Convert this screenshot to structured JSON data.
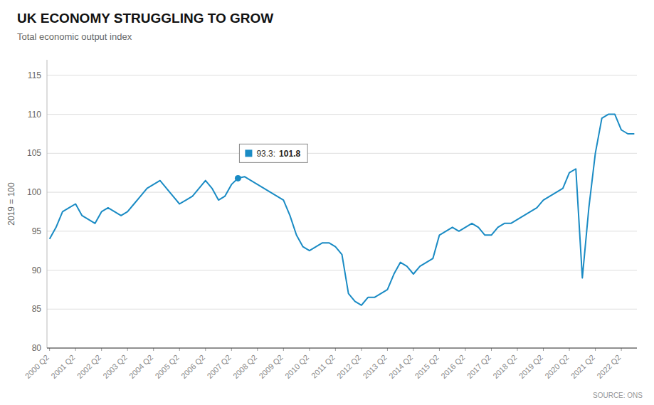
{
  "chart_data": {
    "type": "line",
    "title": "UK ECONOMY STRUGGLING TO GROW",
    "subtitle": "Total economic output index",
    "y_label": "2019 = 100",
    "source": "SOURCE: ONS",
    "color": "#1a8bc4",
    "grid": "y",
    "x": [
      0,
      0.25,
      0.5,
      0.75,
      1,
      1.25,
      1.5,
      1.75,
      2,
      2.25,
      2.5,
      2.75,
      3,
      3.25,
      3.5,
      3.75,
      4,
      4.25,
      4.5,
      4.75,
      5,
      5.25,
      5.5,
      5.75,
      6,
      6.25,
      6.5,
      6.75,
      7,
      7.25,
      7.5,
      7.75,
      8,
      8.25,
      8.5,
      8.75,
      9,
      9.25,
      9.5,
      9.75,
      10,
      10.25,
      10.5,
      10.75,
      11,
      11.25,
      11.5,
      11.75,
      12,
      12.25,
      12.5,
      12.75,
      13,
      13.25,
      13.5,
      13.75,
      14,
      14.25,
      14.5,
      14.75,
      15,
      15.25,
      15.5,
      15.75,
      16,
      16.25,
      16.5,
      16.75,
      17,
      17.25,
      17.5,
      17.75,
      18,
      18.25,
      18.5,
      18.75,
      19,
      19.25,
      19.5,
      19.75,
      20,
      20.25,
      20.5,
      20.75,
      21,
      21.25,
      21.5,
      21.75,
      22,
      22.25,
      22.5
    ],
    "values": [
      94.0,
      95.5,
      97.5,
      98.0,
      98.5,
      97.0,
      96.5,
      96.0,
      97.5,
      98.0,
      97.5,
      97.0,
      97.5,
      98.5,
      99.5,
      100.5,
      101.0,
      101.5,
      100.5,
      99.5,
      98.5,
      99.0,
      99.5,
      100.5,
      101.5,
      100.5,
      99.0,
      99.5,
      101.0,
      101.8,
      102.0,
      101.5,
      101.0,
      100.5,
      100.0,
      99.5,
      99.0,
      97.0,
      94.5,
      93.0,
      92.5,
      93.0,
      93.5,
      93.5,
      93.0,
      92.0,
      87.0,
      86.0,
      85.5,
      86.5,
      86.5,
      87.0,
      87.5,
      89.5,
      91.0,
      90.5,
      89.5,
      90.5,
      91.0,
      91.5,
      94.5,
      95.0,
      95.5,
      95.0,
      95.5,
      96.0,
      95.5,
      94.5,
      94.5,
      95.5,
      96.0,
      96.0,
      96.5,
      97.0,
      97.5,
      98.0,
      99.0,
      99.5,
      100.0,
      100.5,
      102.5,
      103.0,
      89.0,
      98.0,
      105.0,
      109.5,
      110.0,
      110.0,
      108.0,
      107.5,
      107.5
    ],
    "xlim": [
      -0.1,
      22.6
    ],
    "xticks": [
      {
        "value": 0,
        "label": "2000 Q2"
      },
      {
        "value": 1,
        "label": "2001 Q2"
      },
      {
        "value": 2,
        "label": "2002 Q2"
      },
      {
        "value": 3,
        "label": "2003 Q2"
      },
      {
        "value": 4,
        "label": "2004 Q2"
      },
      {
        "value": 5,
        "label": "2005 Q2"
      },
      {
        "value": 6,
        "label": "2006 Q2"
      },
      {
        "value": 7,
        "label": "2007 Q2"
      },
      {
        "value": 8,
        "label": "2008 Q2"
      },
      {
        "value": 9,
        "label": "2009 Q2"
      },
      {
        "value": 10,
        "label": "2010 Q2"
      },
      {
        "value": 11,
        "label": "2011 Q2"
      },
      {
        "value": 12,
        "label": "2012 Q2"
      },
      {
        "value": 13,
        "label": "2013 Q2"
      },
      {
        "value": 14,
        "label": "2014 Q2"
      },
      {
        "value": 15,
        "label": "2015 Q2"
      },
      {
        "value": 16,
        "label": "2016 Q2"
      },
      {
        "value": 17,
        "label": "2017 Q2"
      },
      {
        "value": 18,
        "label": "2018 Q2"
      },
      {
        "value": 19,
        "label": "2019 Q2"
      },
      {
        "value": 20,
        "label": "2020 Q2"
      },
      {
        "value": 21,
        "label": "2021 Q2"
      },
      {
        "value": 22,
        "label": "2022 Q2"
      }
    ],
    "ylim": [
      80,
      117
    ],
    "yticks": [
      80,
      85,
      90,
      95,
      100,
      105,
      110,
      115
    ],
    "annotations": [
      {
        "x": 7.25,
        "y": 101.8,
        "label": "93.3:",
        "value_label": "101.8"
      }
    ]
  }
}
